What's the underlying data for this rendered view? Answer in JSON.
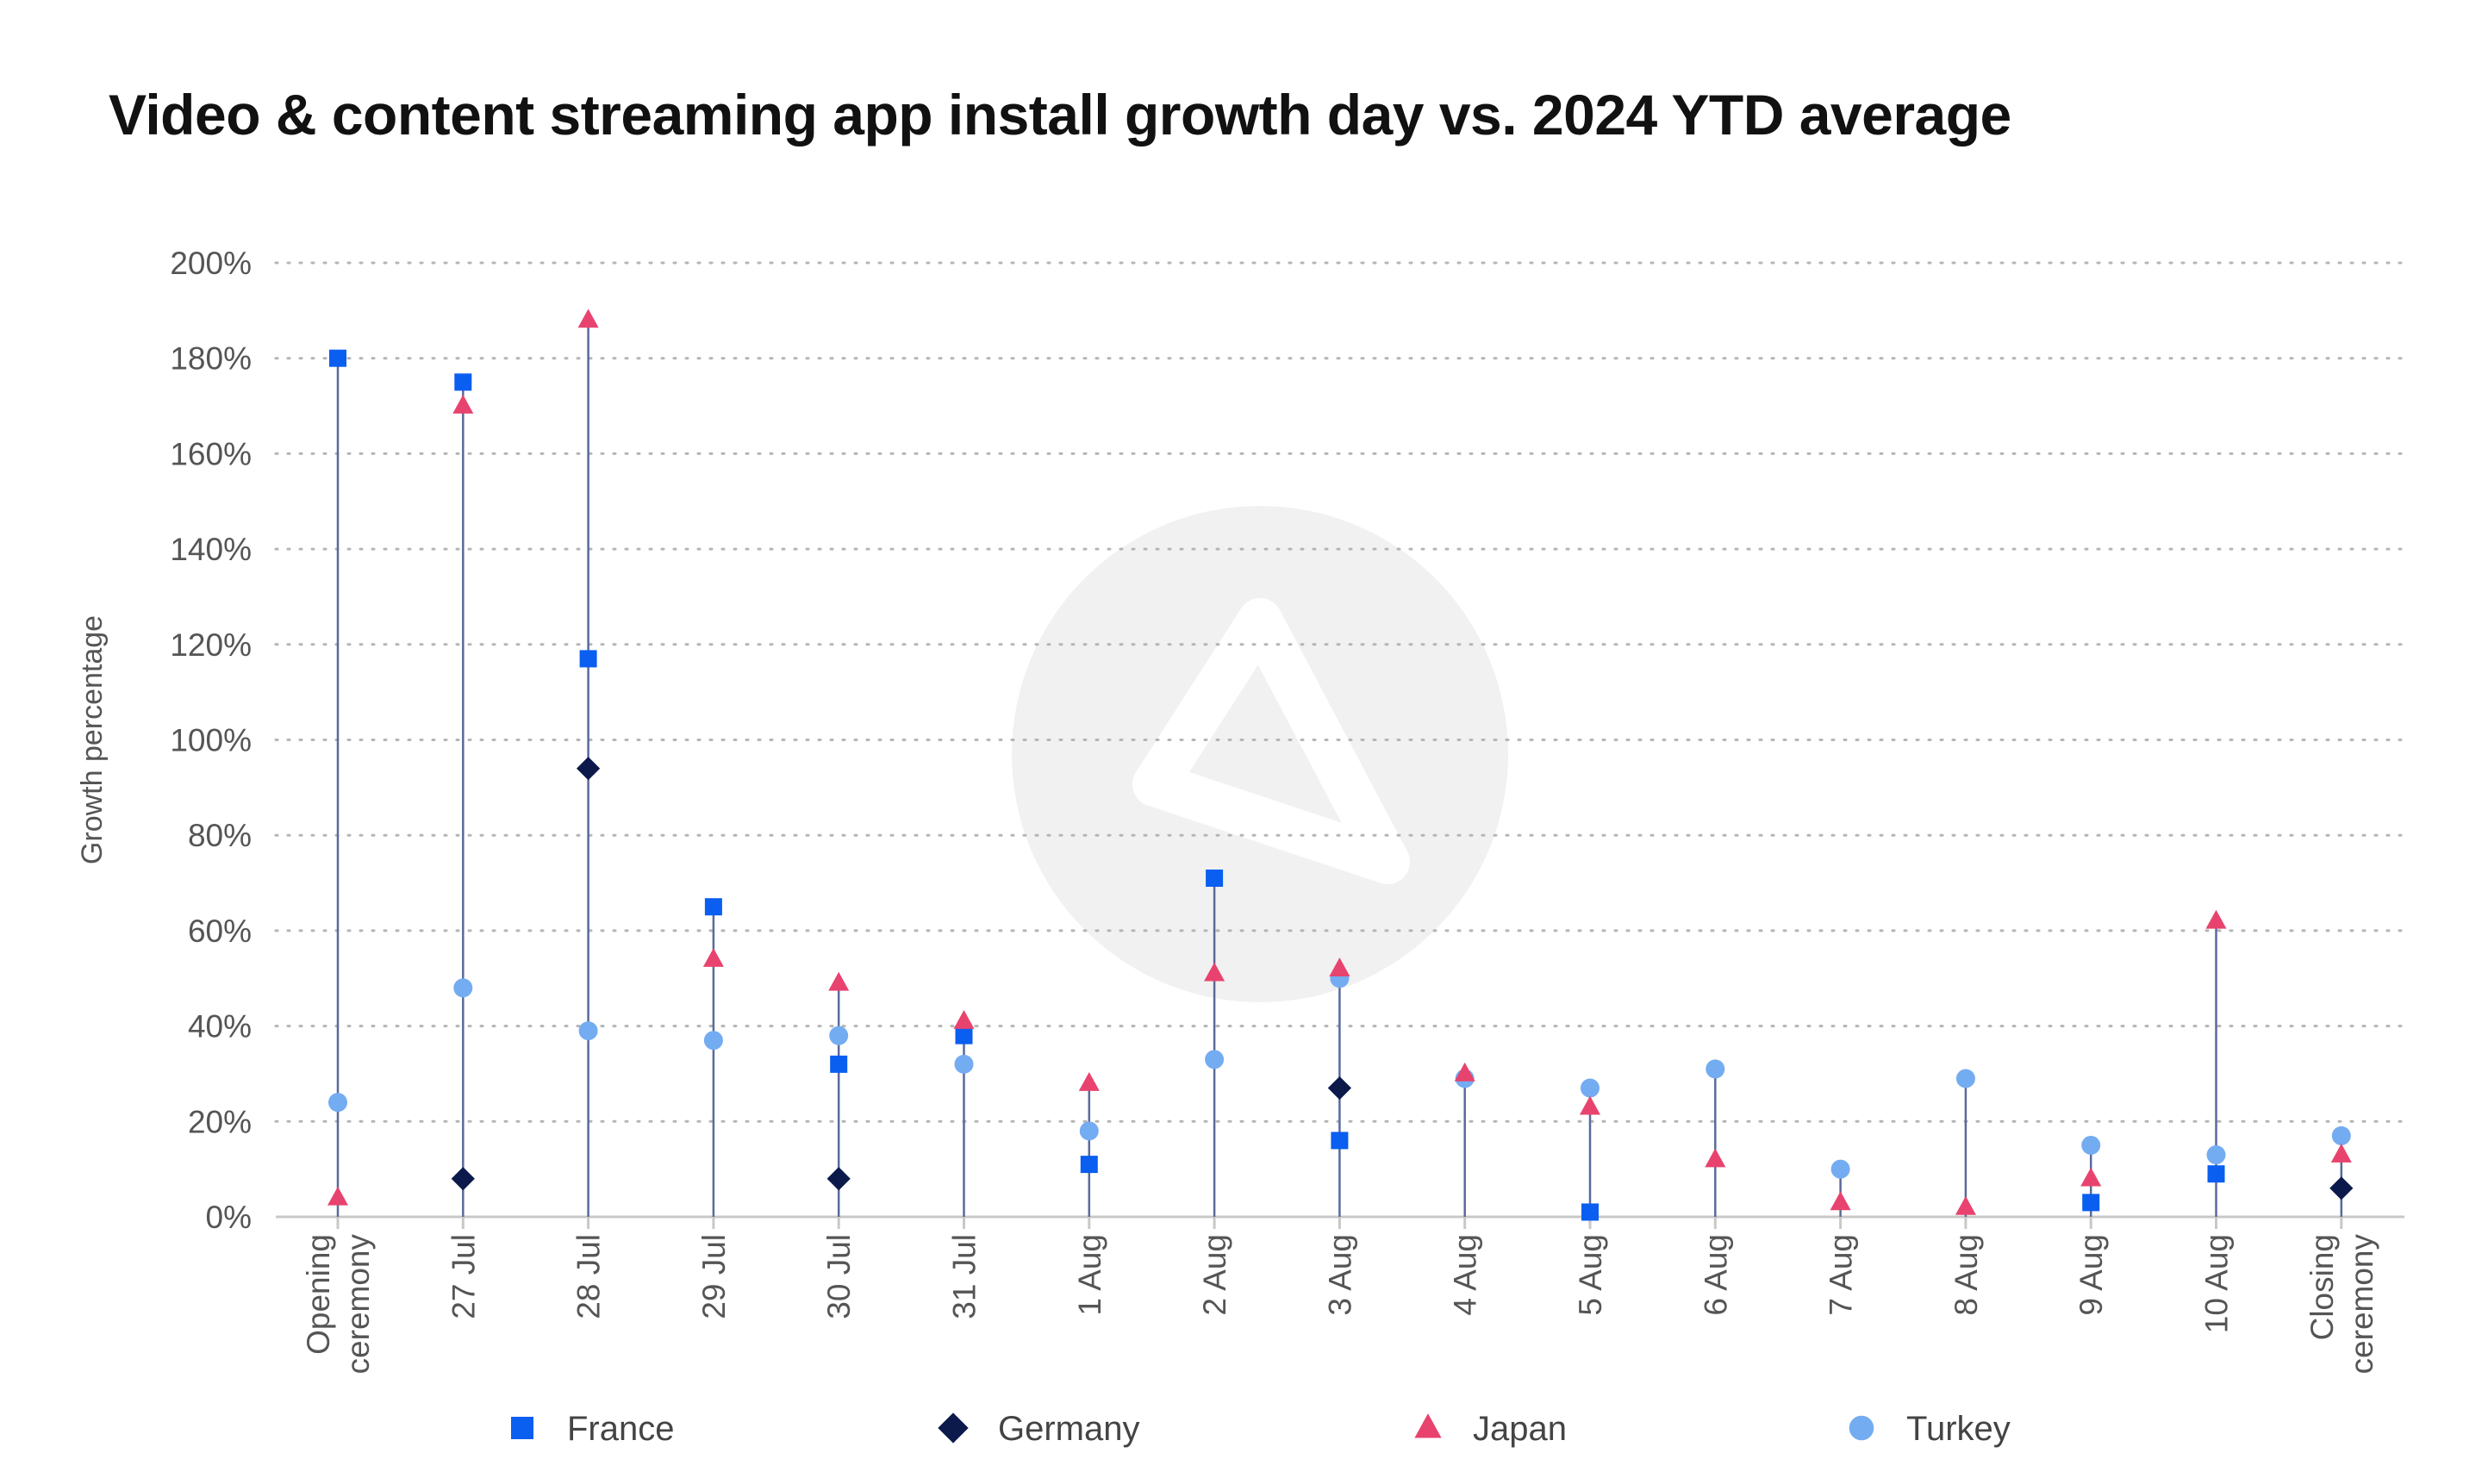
{
  "chart_data": {
    "type": "scatter",
    "style": "lollipop",
    "title": "Video & content streaming app install growth day vs. 2024 YTD average",
    "xlabel": "",
    "ylabel": "Growth percentage",
    "categories": [
      [
        "Opening",
        "ceremony"
      ],
      [
        "27 Jul"
      ],
      [
        "28 Jul"
      ],
      [
        "29 Jul"
      ],
      [
        "30 Jul"
      ],
      [
        "31 Jul"
      ],
      [
        "1 Aug"
      ],
      [
        "2 Aug"
      ],
      [
        "3 Aug"
      ],
      [
        "4 Aug"
      ],
      [
        "5 Aug"
      ],
      [
        "6 Aug"
      ],
      [
        "7 Aug"
      ],
      [
        "8 Aug"
      ],
      [
        "9 Aug"
      ],
      [
        "10 Aug"
      ],
      [
        "Closing",
        "ceremony"
      ]
    ],
    "ylim": [
      0,
      200
    ],
    "yticks": [
      0,
      20,
      40,
      60,
      80,
      100,
      120,
      140,
      160,
      180,
      200
    ],
    "ytick_labels": [
      "0%",
      "20%",
      "40%",
      "60%",
      "80%",
      "100%",
      "120%",
      "140%",
      "160%",
      "180%",
      "200%"
    ],
    "grid": "horizontal dotted",
    "legend_position": "bottom",
    "series": [
      {
        "name": "France",
        "marker": "square",
        "color": "#0a5ef0",
        "values": [
          180,
          175,
          117,
          65,
          32,
          38,
          11,
          71,
          16,
          null,
          1,
          null,
          null,
          null,
          3,
          9,
          null
        ]
      },
      {
        "name": "Germany",
        "marker": "diamond",
        "color": "#0b1a4a",
        "values": [
          null,
          8,
          94,
          null,
          8,
          null,
          null,
          null,
          27,
          null,
          null,
          null,
          null,
          null,
          null,
          null,
          6
        ]
      },
      {
        "name": "Japan",
        "marker": "triangle",
        "color": "#e8436e",
        "values": [
          4,
          170,
          188,
          54,
          49,
          41,
          28,
          51,
          52,
          30,
          23,
          12,
          3,
          2,
          8,
          62,
          13
        ]
      },
      {
        "name": "Turkey",
        "marker": "circle",
        "color": "#74acf2",
        "values": [
          24,
          48,
          39,
          37,
          38,
          32,
          18,
          33,
          50,
          29,
          27,
          31,
          10,
          29,
          15,
          13,
          17
        ]
      }
    ],
    "stem_color": "#5a6a9a",
    "watermark": "logo"
  }
}
